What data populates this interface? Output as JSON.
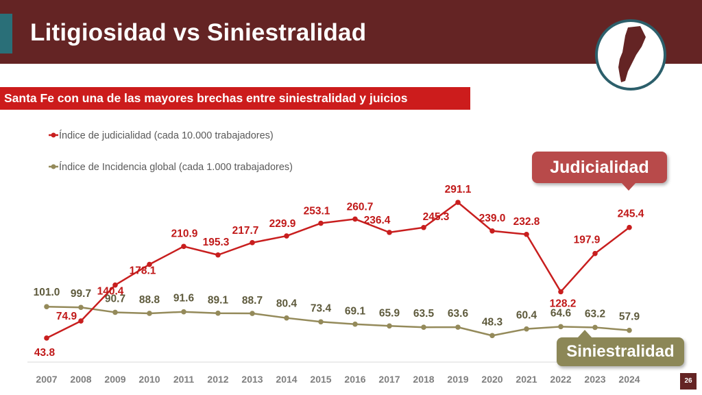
{
  "header": {
    "title": "Litigiosidad vs Siniestralidad"
  },
  "subtitle": "Santa Fe con una de las mayores brechas entre siniestralidad y juicios",
  "callouts": {
    "judicialidad": "Judicialidad",
    "siniestralidad": "Siniestralidad"
  },
  "page_number": "26",
  "colors": {
    "header": "#642424",
    "judicial": "#c81e1e",
    "incidencia": "#948a5a",
    "banner": "#cc1c1c",
    "logo_ring": "#2c5f6b"
  },
  "chart_data": {
    "type": "line",
    "title": "",
    "xlabel": "",
    "ylabel": "",
    "categories": [
      "2007",
      "2008",
      "2009",
      "2010",
      "2011",
      "2012",
      "2013",
      "2014",
      "2015",
      "2016",
      "2017",
      "2018",
      "2019",
      "2020",
      "2021",
      "2022",
      "2023",
      "2024"
    ],
    "series": [
      {
        "name": "Índice de judicialidad (cada 10.000 trabajadores)",
        "color": "#c81e1e",
        "values": [
          43.8,
          74.9,
          140.4,
          178.1,
          210.9,
          195.3,
          217.7,
          229.9,
          253.1,
          260.7,
          236.4,
          245.3,
          291.1,
          239.0,
          232.8,
          128.2,
          197.9,
          245.4
        ],
        "labels": [
          "43.8",
          "74.9",
          "140.4",
          "178.1",
          "210.9",
          "195.3",
          "217.7",
          "229.9",
          "253.1",
          "260.7",
          "236.4",
          "245.3",
          "291.1",
          "239.0",
          "232.8",
          "128.2",
          "197.9",
          "245.4"
        ]
      },
      {
        "name": "Índice de Incidencia global (cada 1.000 trabajadores)",
        "color": "#948a5a",
        "values": [
          101.0,
          99.7,
          90.7,
          88.8,
          91.6,
          89.1,
          88.7,
          80.4,
          73.4,
          69.1,
          65.9,
          63.5,
          63.6,
          48.3,
          60.4,
          64.6,
          63.2,
          57.9
        ],
        "labels": [
          "101.0",
          "99.7",
          "90.7",
          "88.8",
          "91.6",
          "89.1",
          "88.7",
          "80.4",
          "73.4",
          "69.1",
          "65.9",
          "63.5",
          "63.6",
          "48.3",
          "60.4",
          "64.6",
          "63.2",
          "57.9"
        ]
      }
    ],
    "ylim": [
      0,
      330
    ],
    "grid": false,
    "legend": "top-left"
  }
}
